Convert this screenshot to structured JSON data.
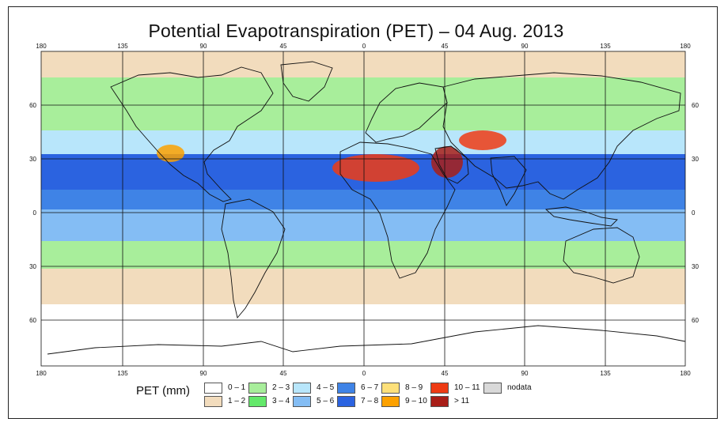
{
  "title": "Potential Evapotranspiration (PET) – 04 Aug. 2013",
  "legend": {
    "title": "PET (mm)",
    "items": [
      {
        "label": "0 – 1",
        "color": "#ffffff"
      },
      {
        "label": "1 – 2",
        "color": "#f2dcbd"
      },
      {
        "label": "2 – 3",
        "color": "#a8ee9b"
      },
      {
        "label": "3 – 4",
        "color": "#63e86a"
      },
      {
        "label": "4 – 5",
        "color": "#b8e6fb"
      },
      {
        "label": "5 – 6",
        "color": "#84bdf4"
      },
      {
        "label": "6 – 7",
        "color": "#3f83e6"
      },
      {
        "label": "7 – 8",
        "color": "#2b63e0"
      },
      {
        "label": "8 – 9",
        "color": "#fde07a"
      },
      {
        "label": "9 – 10",
        "color": "#fca100"
      },
      {
        "label": "10 – 11",
        "color": "#ee3b14"
      },
      {
        "label": "> 11",
        "color": "#a81e18"
      },
      {
        "label": "nodata",
        "color": "#d9d9d9"
      }
    ]
  },
  "axes": {
    "lon_ticks": [
      "180",
      "135",
      "90",
      "45",
      "0",
      "45",
      "90",
      "135",
      "180"
    ],
    "lat_ticks_left": [
      "60",
      "30",
      "0",
      "30",
      "60"
    ],
    "lat_ticks_right": [
      "60",
      "30",
      "0",
      "30",
      "60"
    ]
  },
  "zones": [
    {
      "name": "arctic",
      "color": "#f2dcbd"
    },
    {
      "name": "north-mid",
      "color": "#a8ee9b"
    },
    {
      "name": "north-subtropics",
      "color": "#b8e6fb"
    },
    {
      "name": "tropics-north",
      "color": "#2b63e0"
    },
    {
      "name": "equatorial",
      "color": "#3f83e6"
    },
    {
      "name": "south-tropics",
      "color": "#84bdf4"
    },
    {
      "name": "south-mid",
      "color": "#a8ee9b"
    },
    {
      "name": "south-temperate",
      "color": "#f2dcbd"
    },
    {
      "name": "antarctic",
      "color": "#ffffff"
    }
  ],
  "hotspots": [
    {
      "name": "sahara",
      "color": "#ee3b14"
    },
    {
      "name": "arabia",
      "color": "#a81e18"
    },
    {
      "name": "iran",
      "color": "#ee3b14"
    },
    {
      "name": "sw-usa",
      "color": "#fca100"
    }
  ]
}
